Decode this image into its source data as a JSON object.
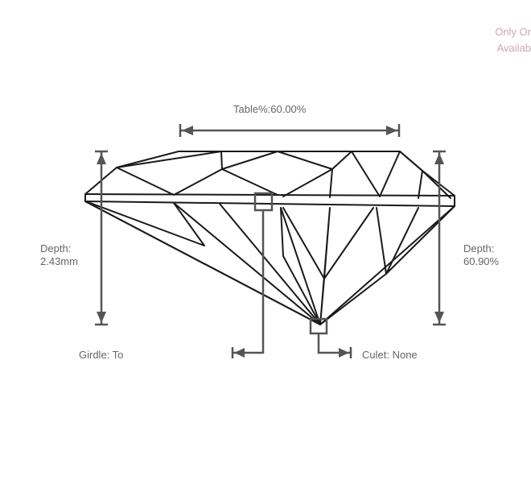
{
  "availability_note": {
    "line1": "Only Or",
    "line2": "Availab",
    "color": "#c9a8b4"
  },
  "measurements": {
    "table": "Table%:60.00%",
    "depth_mm_label": "Depth:",
    "depth_mm_value": "2.43mm",
    "depth_pct_label": "Depth:",
    "depth_pct_value": "60.90%",
    "girdle": "Girdle: To",
    "culet": "Culet: None"
  }
}
